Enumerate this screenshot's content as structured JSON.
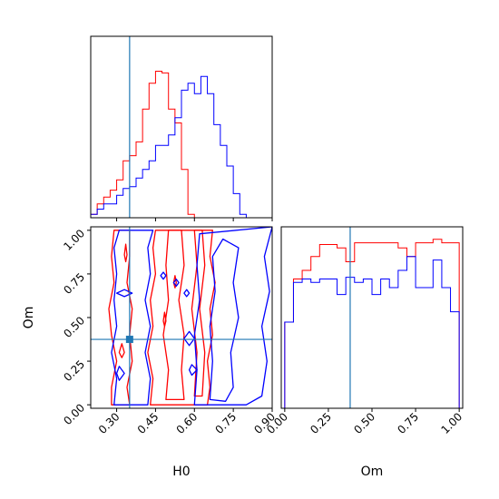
{
  "chart_data": {
    "type": "corner",
    "parameters": [
      "H0",
      "Om"
    ],
    "truth": {
      "H0": 0.35,
      "Om": 0.375
    },
    "colors": {
      "series_a": "#ff0000",
      "series_b": "#0000ff",
      "truth": "#1f77b4"
    },
    "grid": false,
    "panels": [
      {
        "id": "hist-h0",
        "type": "histogram-step",
        "xlim": [
          0.2,
          0.9
        ],
        "xticks": [
          0.3,
          0.45,
          0.6,
          0.75,
          0.9
        ],
        "bin_width": 0.025,
        "bin_start": 0.2,
        "series": [
          {
            "color": "#ff0000",
            "values": [
              0.02,
              0.08,
              0.12,
              0.16,
              0.22,
              0.33,
              0.36,
              0.44,
              0.63,
              0.78,
              0.85,
              0.84,
              0.63,
              0.55,
              0.28,
              0.02,
              0,
              0,
              0,
              0,
              0,
              0,
              0,
              0,
              0,
              0,
              0,
              0
            ]
          },
          {
            "color": "#0000ff",
            "values": [
              0.02,
              0.05,
              0.08,
              0.08,
              0.13,
              0.17,
              0.18,
              0.23,
              0.28,
              0.33,
              0.42,
              0.42,
              0.48,
              0.58,
              0.74,
              0.78,
              0.72,
              0.82,
              0.72,
              0.54,
              0.42,
              0.3,
              0.14,
              0.02,
              0,
              0,
              0,
              0
            ]
          }
        ]
      },
      {
        "id": "hist-om",
        "type": "histogram-step",
        "xlim": [
          -0.02,
          1.02
        ],
        "xticks": [
          0.0,
          0.25,
          0.5,
          0.75,
          1.0
        ],
        "bin_width": 0.05,
        "bin_start": 0.0,
        "series": [
          {
            "color": "#ff0000",
            "values": [
              0.5,
              0.75,
              0.8,
              0.88,
              0.95,
              0.95,
              0.93,
              0.85,
              0.96,
              0.96,
              0.96,
              0.96,
              0.96,
              0.93,
              0.88,
              0.96,
              0.96,
              0.98,
              0.96,
              0.96
            ]
          },
          {
            "color": "#0000ff",
            "values": [
              0.5,
              0.73,
              0.75,
              0.73,
              0.75,
              0.75,
              0.66,
              0.76,
              0.73,
              0.75,
              0.66,
              0.75,
              0.7,
              0.8,
              0.88,
              0.7,
              0.7,
              0.86,
              0.7,
              0.56
            ]
          }
        ]
      },
      {
        "id": "contour-h0-om",
        "type": "contour",
        "xlim": [
          0.2,
          0.9
        ],
        "ylim": [
          -0.02,
          1.02
        ],
        "xticks": [
          0.3,
          0.45,
          0.6,
          0.75,
          0.9
        ],
        "yticks": [
          0.0,
          0.25,
          0.5,
          0.75,
          1.0
        ],
        "xlabel": "H0",
        "ylabel": "Om",
        "series": [
          {
            "color": "#ff0000",
            "contours": [
              [
                [
                  0.28,
                  0.0
                ],
                [
                  0.28,
                  0.1
                ],
                [
                  0.3,
                  0.25
                ],
                [
                  0.28,
                  0.4
                ],
                [
                  0.27,
                  0.55
                ],
                [
                  0.29,
                  0.7
                ],
                [
                  0.28,
                  0.85
                ],
                [
                  0.29,
                  1.0
                ],
                [
                  0.35,
                  1.0
                ],
                [
                  0.35,
                  0.85
                ],
                [
                  0.34,
                  0.7
                ],
                [
                  0.36,
                  0.55
                ],
                [
                  0.35,
                  0.4
                ],
                [
                  0.36,
                  0.25
                ],
                [
                  0.34,
                  0.1
                ],
                [
                  0.35,
                  0.0
                ]
              ],
              [
                [
                  0.43,
                  0.0
                ],
                [
                  0.44,
                  0.15
                ],
                [
                  0.42,
                  0.3
                ],
                [
                  0.44,
                  0.45
                ],
                [
                  0.43,
                  0.6
                ],
                [
                  0.45,
                  0.75
                ],
                [
                  0.44,
                  0.9
                ],
                [
                  0.45,
                  1.0
                ],
                [
                  0.67,
                  1.0
                ],
                [
                  0.66,
                  0.85
                ],
                [
                  0.68,
                  0.7
                ],
                [
                  0.66,
                  0.55
                ],
                [
                  0.67,
                  0.4
                ],
                [
                  0.65,
                  0.25
                ],
                [
                  0.66,
                  0.1
                ],
                [
                  0.65,
                  0.0
                ]
              ],
              [
                [
                  0.49,
                  0.03
                ],
                [
                  0.5,
                  0.2
                ],
                [
                  0.48,
                  0.4
                ],
                [
                  0.5,
                  0.6
                ],
                [
                  0.49,
                  0.8
                ],
                [
                  0.5,
                  1.0
                ],
                [
                  0.55,
                  1.0
                ],
                [
                  0.56,
                  0.8
                ],
                [
                  0.54,
                  0.6
                ],
                [
                  0.56,
                  0.4
                ],
                [
                  0.55,
                  0.2
                ],
                [
                  0.56,
                  0.03
                ]
              ],
              [
                [
                  0.6,
                  0.05
                ],
                [
                  0.61,
                  0.3
                ],
                [
                  0.59,
                  0.55
                ],
                [
                  0.61,
                  0.8
                ],
                [
                  0.6,
                  1.0
                ],
                [
                  0.63,
                  1.0
                ],
                [
                  0.64,
                  0.8
                ],
                [
                  0.62,
                  0.55
                ],
                [
                  0.64,
                  0.3
                ],
                [
                  0.63,
                  0.05
                ]
              ],
              [
                [
                  0.31,
                  0.3
                ],
                [
                  0.32,
                  0.35
                ],
                [
                  0.33,
                  0.3
                ],
                [
                  0.32,
                  0.27
                ]
              ],
              [
                [
                  0.48,
                  0.48
                ],
                [
                  0.485,
                  0.53
                ],
                [
                  0.49,
                  0.48
                ],
                [
                  0.485,
                  0.45
                ]
              ],
              [
                [
                  0.52,
                  0.7
                ],
                [
                  0.525,
                  0.74
                ],
                [
                  0.53,
                  0.7
                ],
                [
                  0.525,
                  0.67
                ]
              ],
              [
                [
                  0.33,
                  0.86
                ],
                [
                  0.335,
                  0.92
                ],
                [
                  0.34,
                  0.86
                ],
                [
                  0.335,
                  0.82
                ]
              ]
            ]
          },
          {
            "color": "#0000ff",
            "contours": [
              [
                [
                  0.29,
                  0.0
                ],
                [
                  0.3,
                  0.15
                ],
                [
                  0.28,
                  0.3
                ],
                [
                  0.3,
                  0.45
                ],
                [
                  0.29,
                  0.6
                ],
                [
                  0.3,
                  0.75
                ],
                [
                  0.29,
                  0.9
                ],
                [
                  0.31,
                  1.0
                ],
                [
                  0.44,
                  1.0
                ],
                [
                  0.42,
                  0.9
                ],
                [
                  0.43,
                  0.75
                ],
                [
                  0.41,
                  0.6
                ],
                [
                  0.43,
                  0.45
                ],
                [
                  0.41,
                  0.3
                ],
                [
                  0.43,
                  0.15
                ],
                [
                  0.42,
                  0.0
                ]
              ],
              [
                [
                  0.6,
                  0.0
                ],
                [
                  0.61,
                  0.2
                ],
                [
                  0.6,
                  0.4
                ],
                [
                  0.62,
                  0.6
                ],
                [
                  0.61,
                  0.8
                ],
                [
                  0.62,
                  0.98
                ],
                [
                  0.9,
                  1.02
                ],
                [
                  0.87,
                  0.85
                ],
                [
                  0.89,
                  0.65
                ],
                [
                  0.86,
                  0.45
                ],
                [
                  0.88,
                  0.25
                ],
                [
                  0.86,
                  0.05
                ],
                [
                  0.8,
                  0.0
                ]
              ],
              [
                [
                  0.66,
                  0.03
                ],
                [
                  0.67,
                  0.25
                ],
                [
                  0.66,
                  0.45
                ],
                [
                  0.68,
                  0.65
                ],
                [
                  0.67,
                  0.85
                ],
                [
                  0.71,
                  0.95
                ],
                [
                  0.77,
                  0.9
                ],
                [
                  0.75,
                  0.7
                ],
                [
                  0.77,
                  0.5
                ],
                [
                  0.74,
                  0.3
                ],
                [
                  0.75,
                  0.1
                ],
                [
                  0.72,
                  0.02
                ]
              ],
              [
                [
                  0.47,
                  0.74
                ],
                [
                  0.48,
                  0.76
                ],
                [
                  0.49,
                  0.74
                ],
                [
                  0.48,
                  0.72
                ]
              ],
              [
                [
                  0.56,
                  0.64
                ],
                [
                  0.57,
                  0.66
                ],
                [
                  0.58,
                  0.64
                ],
                [
                  0.57,
                  0.62
                ]
              ],
              [
                [
                  0.52,
                  0.7
                ],
                [
                  0.53,
                  0.72
                ],
                [
                  0.54,
                  0.7
                ],
                [
                  0.53,
                  0.68
                ]
              ],
              [
                [
                  0.3,
                  0.64
                ],
                [
                  0.33,
                  0.66
                ],
                [
                  0.36,
                  0.64
                ],
                [
                  0.33,
                  0.62
                ]
              ],
              [
                [
                  0.56,
                  0.38
                ],
                [
                  0.58,
                  0.42
                ],
                [
                  0.6,
                  0.38
                ],
                [
                  0.58,
                  0.34
                ]
              ],
              [
                [
                  0.58,
                  0.2
                ],
                [
                  0.59,
                  0.23
                ],
                [
                  0.61,
                  0.2
                ],
                [
                  0.59,
                  0.17
                ]
              ],
              [
                [
                  0.3,
                  0.18
                ],
                [
                  0.31,
                  0.22
                ],
                [
                  0.33,
                  0.18
                ],
                [
                  0.31,
                  0.14
                ]
              ]
            ]
          }
        ]
      }
    ]
  }
}
